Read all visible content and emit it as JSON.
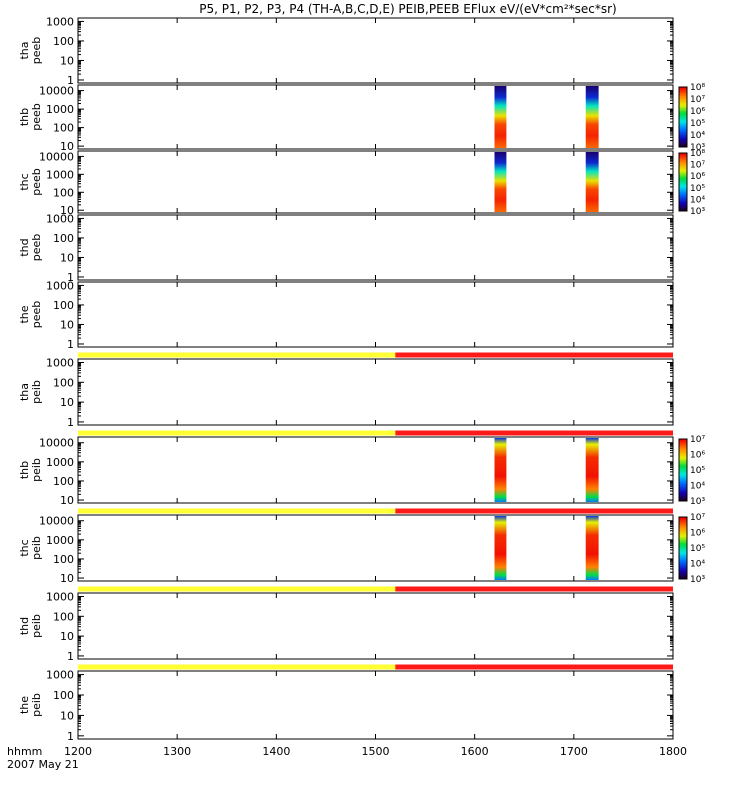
{
  "chart_data": {
    "type": "heatmap",
    "title": "P5, P1, P2, P3, P4 (TH-A,B,C,D,E) PEIB,PEEB EFlux eV/(eV*cm²*sec*sr)",
    "x_axis": {
      "label_top": "hhmm",
      "label_bottom": "2007 May 21",
      "range": [
        1200,
        1800
      ],
      "ticks": [
        "1200",
        "1300",
        "1400",
        "1500",
        "1600",
        "1700",
        "1800"
      ]
    },
    "bursts": [
      {
        "start": 1620,
        "end": 1632
      },
      {
        "start": 1712,
        "end": 1725
      }
    ],
    "mode_bar": {
      "yellow_range": [
        1200,
        1520
      ],
      "red_range": [
        1520,
        1800
      ],
      "yellow": "#ffff33",
      "red": "#ff1a1a"
    },
    "panels": [
      {
        "id": "tha-peeb",
        "probe": "tha",
        "product": "peeb",
        "scale": "log",
        "ylim": [
          0.7,
          1500
        ],
        "yticks": [
          "1000",
          "100",
          "10",
          "1"
        ],
        "has_data": false,
        "mode_bar": false
      },
      {
        "id": "thb-peeb",
        "probe": "thb",
        "product": "peeb",
        "scale": "log",
        "ylim": [
          7,
          20000
        ],
        "yticks": [
          "10000",
          "1000",
          "100",
          "10"
        ],
        "has_data": true,
        "mode_bar": false,
        "colorbar": {
          "exp_min": 3,
          "exp_max": 8,
          "ticks": [
            "10⁸",
            "10⁷",
            "10⁶",
            "10⁵",
            "10⁴",
            "10³"
          ]
        }
      },
      {
        "id": "thc-peeb",
        "probe": "thc",
        "product": "peeb",
        "scale": "log",
        "ylim": [
          7,
          20000
        ],
        "yticks": [
          "10000",
          "1000",
          "100",
          "10"
        ],
        "has_data": true,
        "mode_bar": false,
        "colorbar": {
          "exp_min": 3,
          "exp_max": 8,
          "ticks": [
            "10⁸",
            "10⁷",
            "10⁶",
            "10⁵",
            "10⁴",
            "10³"
          ]
        }
      },
      {
        "id": "thd-peeb",
        "probe": "thd",
        "product": "peeb",
        "scale": "log",
        "ylim": [
          0.7,
          1500
        ],
        "yticks": [
          "1000",
          "100",
          "10",
          "1"
        ],
        "has_data": false,
        "mode_bar": false
      },
      {
        "id": "the-peeb",
        "probe": "the",
        "product": "peeb",
        "scale": "log",
        "ylim": [
          0.7,
          1500
        ],
        "yticks": [
          "1000",
          "100",
          "10",
          "1"
        ],
        "has_data": false,
        "mode_bar": false
      },
      {
        "id": "tha-peib",
        "probe": "tha",
        "product": "peib",
        "scale": "log",
        "ylim": [
          0.7,
          1500
        ],
        "yticks": [
          "1000",
          "100",
          "10",
          "1"
        ],
        "has_data": false,
        "mode_bar": true
      },
      {
        "id": "thb-peib",
        "probe": "thb",
        "product": "peib",
        "scale": "log",
        "ylim": [
          7,
          20000
        ],
        "yticks": [
          "10000",
          "1000",
          "100",
          "10"
        ],
        "has_data": true,
        "mode_bar": true,
        "colorbar": {
          "exp_min": 3,
          "exp_max": 7,
          "ticks": [
            "10⁷",
            "10⁶",
            "10⁵",
            "10⁴",
            "10³"
          ]
        }
      },
      {
        "id": "thc-peib",
        "probe": "thc",
        "product": "peib",
        "scale": "log",
        "ylim": [
          7,
          20000
        ],
        "yticks": [
          "10000",
          "1000",
          "100",
          "10"
        ],
        "has_data": true,
        "mode_bar": true,
        "colorbar": {
          "exp_min": 3,
          "exp_max": 7,
          "ticks": [
            "10⁷",
            "10⁶",
            "10⁵",
            "10⁴",
            "10³"
          ]
        }
      },
      {
        "id": "thd-peib",
        "probe": "thd",
        "product": "peib",
        "scale": "log",
        "ylim": [
          0.7,
          1500
        ],
        "yticks": [
          "1000",
          "100",
          "10",
          "1"
        ],
        "has_data": false,
        "mode_bar": true
      },
      {
        "id": "the-peib",
        "probe": "the",
        "product": "peib",
        "scale": "log",
        "ylim": [
          0.7,
          1500
        ],
        "yticks": [
          "1000",
          "100",
          "10",
          "1"
        ],
        "has_data": false,
        "mode_bar": true
      }
    ]
  }
}
